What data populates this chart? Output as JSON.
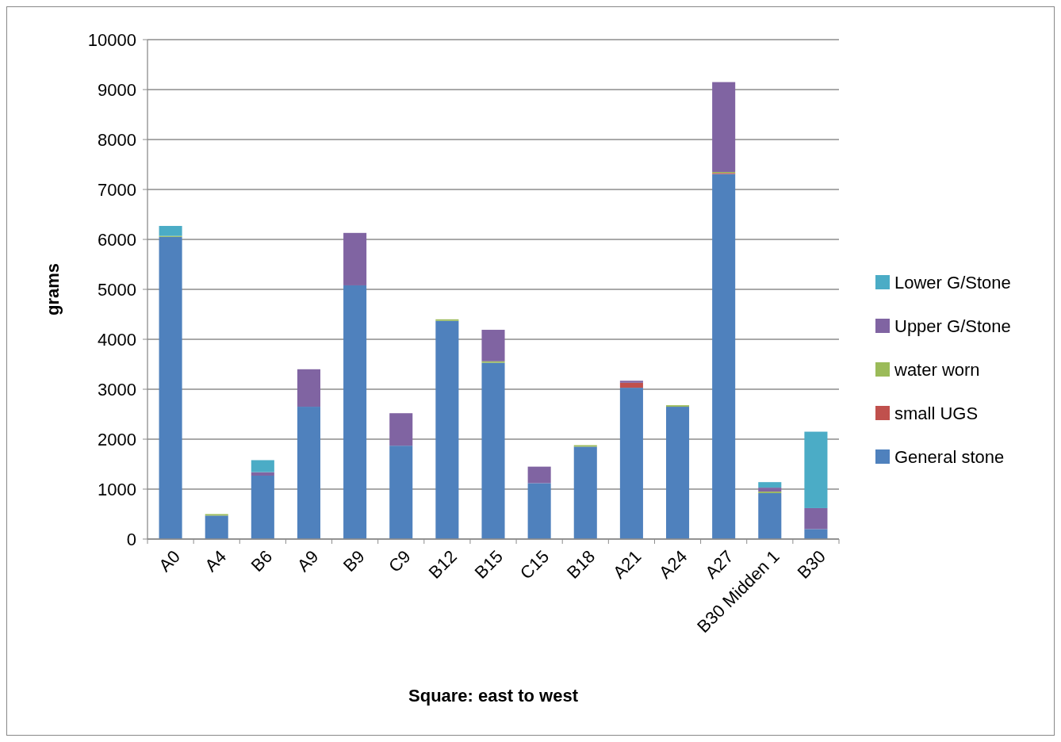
{
  "chart_data": {
    "type": "bar",
    "stacked": true,
    "xlabel": "Square: east to west",
    "ylabel": "grams",
    "categories": [
      "A0",
      "A4",
      "B6",
      "A9",
      "B9",
      "C9",
      "B12",
      "B15",
      "C15",
      "B18",
      "A21",
      "A24",
      "A27",
      "B30 Midden 1",
      "B30"
    ],
    "series": [
      {
        "name": "General stone",
        "color": "#4f81bd",
        "values": [
          6050,
          470,
          1270,
          2650,
          5080,
          1870,
          4370,
          3530,
          1120,
          1850,
          3030,
          2650,
          7310,
          920,
          200
        ]
      },
      {
        "name": "small UGS",
        "color": "#c0504d",
        "values": [
          0,
          0,
          0,
          0,
          0,
          0,
          0,
          0,
          0,
          0,
          100,
          0,
          20,
          0,
          0
        ]
      },
      {
        "name": "water worn",
        "color": "#9bbb59",
        "values": [
          20,
          30,
          0,
          0,
          0,
          0,
          30,
          30,
          0,
          30,
          0,
          30,
          20,
          30,
          0
        ]
      },
      {
        "name": "Upper G/Stone",
        "color": "#8064a2",
        "values": [
          0,
          0,
          70,
          750,
          1050,
          650,
          0,
          630,
          330,
          0,
          40,
          0,
          1800,
          80,
          420
        ]
      },
      {
        "name": "Lower G/Stone",
        "color": "#4bacc6",
        "values": [
          200,
          0,
          240,
          0,
          0,
          0,
          0,
          0,
          0,
          0,
          0,
          0,
          0,
          110,
          1530
        ]
      }
    ],
    "ylim": [
      0,
      10000
    ],
    "yticks": [
      0,
      1000,
      2000,
      3000,
      4000,
      5000,
      6000,
      7000,
      8000,
      9000,
      10000
    ],
    "grid": "y",
    "legend": "right"
  }
}
